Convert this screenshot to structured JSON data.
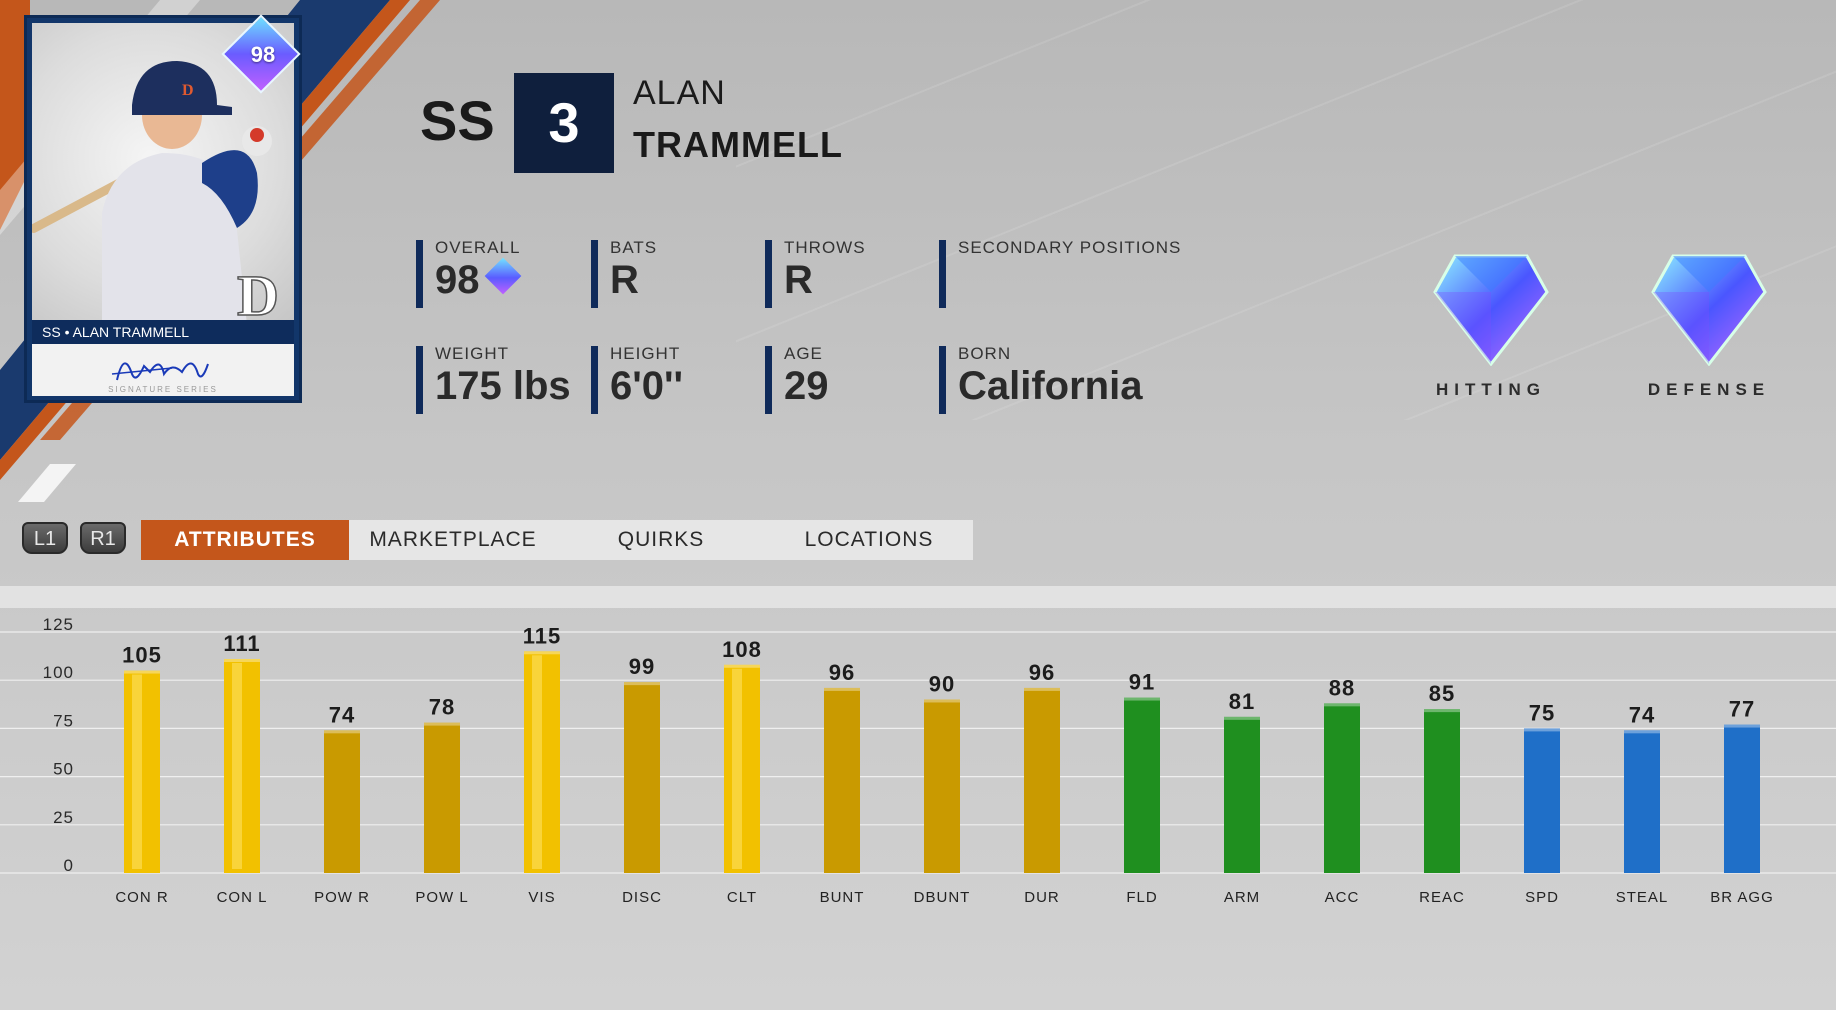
{
  "card": {
    "ovr": "98",
    "nameplate": "SS • ALAN TRAMMELL",
    "sig_caption": "SIGNATURE SERIES"
  },
  "player": {
    "position": "SS",
    "number": "3",
    "first_name": "ALAN",
    "last_name": "TRAMMELL"
  },
  "info": {
    "overall_label": "OVERALL",
    "overall_value": "98",
    "bats_label": "BATS",
    "bats_value": "R",
    "throws_label": "THROWS",
    "throws_value": "R",
    "secondary_label": "SECONDARY POSITIONS",
    "secondary_value": "",
    "weight_label": "WEIGHT",
    "weight_value": "175 lbs",
    "height_label": "HEIGHT",
    "height_value": "6'0''",
    "age_label": "AGE",
    "age_value": "29",
    "born_label": "BORN",
    "born_value": "California"
  },
  "ratings": {
    "hitting_label": "HITTING",
    "defense_label": "DEFENSE"
  },
  "bumpers": {
    "l1": "L1",
    "r1": "R1"
  },
  "tabs": [
    {
      "label": "ATTRIBUTES",
      "active": true
    },
    {
      "label": "MARKETPLACE",
      "active": false
    },
    {
      "label": "QUIRKS",
      "active": false
    },
    {
      "label": "LOCATIONS",
      "active": false
    }
  ],
  "colors": {
    "hitting": "#c99a00",
    "fielding": "#1f8f1f",
    "running": "#1f6fc8",
    "accent": "#c4561b",
    "navy": "#0f1f3d"
  },
  "chart_data": {
    "type": "bar",
    "ylim": [
      0,
      125
    ],
    "yticks": [
      0,
      25,
      50,
      75,
      100,
      125
    ],
    "grid": true,
    "categories": [
      "CON R",
      "CON L",
      "POW R",
      "POW L",
      "VIS",
      "DISC",
      "CLT",
      "BUNT",
      "DBUNT",
      "DUR",
      "FLD",
      "ARM",
      "ACC",
      "REAC",
      "SPD",
      "STEAL",
      "BR AGG"
    ],
    "values": [
      105,
      111,
      74,
      78,
      115,
      99,
      108,
      96,
      90,
      96,
      91,
      81,
      88,
      85,
      75,
      74,
      77
    ],
    "groups": [
      "hitting",
      "hitting",
      "hitting",
      "hitting",
      "hitting",
      "hitting",
      "hitting",
      "hitting",
      "hitting",
      "hitting",
      "fielding",
      "fielding",
      "fielding",
      "fielding",
      "running",
      "running",
      "running"
    ]
  }
}
